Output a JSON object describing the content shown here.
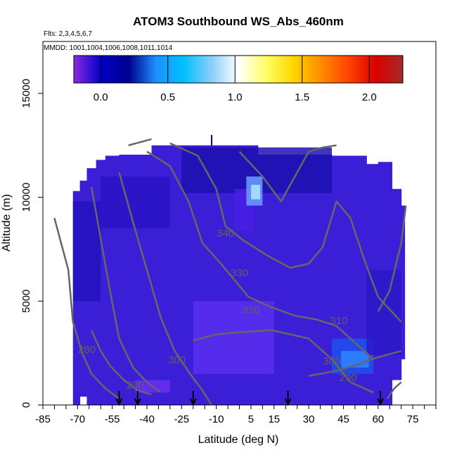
{
  "chart_data": {
    "type": "heatmap",
    "title": "ATOM3 Southbound WS_Abs_460nm",
    "flights_label": "Flts: 2,3,4,5,6,7",
    "dates_label": "MMDD: 1001,1004,1006,1008,1011,1014",
    "xlabel": "Latitude (deg N)",
    "ylabel": "Altitude (m)",
    "xlim": [
      -85,
      85
    ],
    "ylim": [
      0,
      17500
    ],
    "x_ticks": [
      -85,
      -70,
      -55,
      -40,
      -25,
      -10,
      5,
      15,
      30,
      45,
      60,
      75
    ],
    "y_ticks": [
      0,
      5000,
      10000,
      15000
    ],
    "colorbar": {
      "range": [
        -0.2,
        2.25
      ],
      "ticks": [
        0.0,
        0.5,
        1.0,
        1.5,
        2.0
      ],
      "tick_labels": [
        "0.0",
        "0.5",
        "1.0",
        "1.5",
        "2.0"
      ],
      "colors": [
        "#8a2be2",
        "#0000c8",
        "#00008b",
        "#1e90ff",
        "#00bfff",
        "#87cefa",
        "#ffffff",
        "#ffff66",
        "#ffd700",
        "#ff8c00",
        "#ff4500",
        "#dc0000",
        "#a52a2a"
      ]
    },
    "field_color": "#3b1fd6",
    "contour_color": "#666666",
    "contour_labels": [
      {
        "text": "340",
        "lat": -6,
        "alt": 8100
      },
      {
        "text": "330",
        "lat": 0,
        "alt": 6200
      },
      {
        "text": "320",
        "lat": 5,
        "alt": 4400
      },
      {
        "text": "310",
        "lat": 43,
        "alt": 3900
      },
      {
        "text": "300",
        "lat": -27,
        "alt": 2000
      },
      {
        "text": "300",
        "lat": 40,
        "alt": 1950
      },
      {
        "text": "290",
        "lat": -45,
        "alt": 800
      },
      {
        "text": "290",
        "lat": 47,
        "alt": 1150
      },
      {
        "text": "280",
        "lat": -66,
        "alt": 2500
      }
    ],
    "profile_arrows_lat": [
      -52,
      -44,
      -20,
      21,
      61
    ]
  }
}
